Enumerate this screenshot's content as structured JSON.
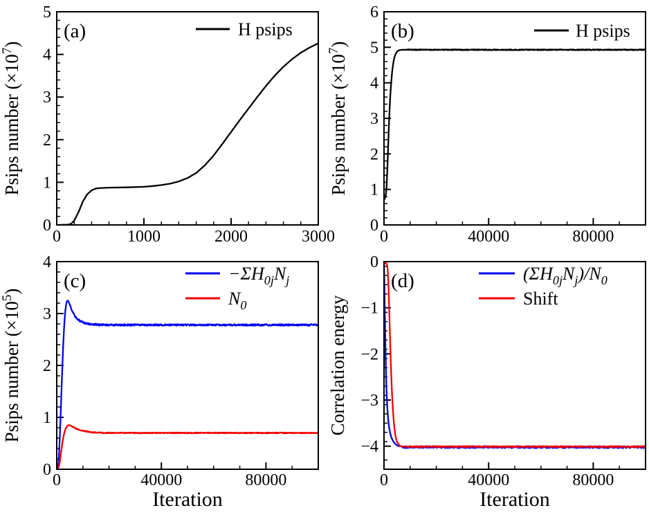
{
  "figure": {
    "background": "#ffffff",
    "panel_labels": [
      "(a)",
      "(b)",
      "(c)",
      "(d)"
    ]
  },
  "colors": {
    "axis": "#000000",
    "black_series": "#000000",
    "blue_series": "#0000f0",
    "red_series": "#f50000"
  },
  "chart_data": [
    {
      "id": "a",
      "type": "line",
      "panel_label": "(a)",
      "title": "",
      "xlabel": "",
      "ylabel": "Psips number (×10^{7})",
      "xlim": [
        0,
        3000
      ],
      "ylim": [
        0,
        5
      ],
      "xticks": [
        0,
        1000,
        2000,
        3000
      ],
      "xticklabels": [
        "0",
        "1000",
        "2000",
        "3000"
      ],
      "yticks": [
        0,
        1,
        2,
        3,
        4,
        5
      ],
      "yticklabels": [
        "0",
        "1",
        "2",
        "3",
        "4",
        "5"
      ],
      "minor_x": 200,
      "minor_y": 0.2,
      "grid": false,
      "legend_position": "top-right",
      "legend": [
        {
          "label": "H psips",
          "color": "#000000",
          "italic": false
        }
      ],
      "series": [
        {
          "name": "H psips",
          "color": "#000000",
          "noise": 0,
          "noise_from": 0,
          "points": [
            [
              0,
              0
            ],
            [
              120,
              0.005
            ],
            [
              160,
              0.02
            ],
            [
              200,
              0.1
            ],
            [
              250,
              0.3
            ],
            [
              300,
              0.55
            ],
            [
              350,
              0.72
            ],
            [
              400,
              0.81
            ],
            [
              450,
              0.855
            ],
            [
              500,
              0.865
            ],
            [
              600,
              0.875
            ],
            [
              700,
              0.878
            ],
            [
              800,
              0.882
            ],
            [
              900,
              0.888
            ],
            [
              1000,
              0.895
            ],
            [
              1100,
              0.912
            ],
            [
              1200,
              0.935
            ],
            [
              1300,
              0.968
            ],
            [
              1400,
              1.02
            ],
            [
              1500,
              1.1
            ],
            [
              1600,
              1.22
            ],
            [
              1700,
              1.4
            ],
            [
              1800,
              1.63
            ],
            [
              1900,
              1.9
            ],
            [
              2000,
              2.18
            ],
            [
              2100,
              2.46
            ],
            [
              2200,
              2.73
            ],
            [
              2300,
              3.0
            ],
            [
              2400,
              3.26
            ],
            [
              2500,
              3.5
            ],
            [
              2600,
              3.71
            ],
            [
              2700,
              3.89
            ],
            [
              2800,
              4.04
            ],
            [
              2900,
              4.16
            ],
            [
              3000,
              4.26
            ]
          ]
        }
      ]
    },
    {
      "id": "b",
      "type": "line",
      "panel_label": "(b)",
      "title": "",
      "xlabel": "",
      "ylabel": "Psips number (×10^{7})",
      "xlim": [
        0,
        100000
      ],
      "ylim": [
        0,
        6
      ],
      "xticks": [
        0,
        40000,
        80000
      ],
      "xticklabels": [
        "0",
        "40000",
        "80000"
      ],
      "yticks": [
        0,
        1,
        2,
        3,
        4,
        5,
        6
      ],
      "yticklabels": [
        "0",
        "1",
        "2",
        "3",
        "4",
        "5",
        "6"
      ],
      "minor_x": 10000,
      "minor_y": 0.2,
      "grid": false,
      "legend_position": "top-right",
      "legend": [
        {
          "label": "H psips",
          "color": "#000000",
          "italic": false
        }
      ],
      "series": [
        {
          "name": "H psips",
          "color": "#000000",
          "noise": 0.012,
          "noise_from": 9000,
          "points": [
            [
              0,
              0.7
            ],
            [
              150,
              0.72
            ],
            [
              300,
              0.74
            ],
            [
              500,
              0.78
            ],
            [
              700,
              0.85
            ],
            [
              900,
              1.0
            ],
            [
              1100,
              1.25
            ],
            [
              1300,
              1.6
            ],
            [
              1500,
              2.0
            ],
            [
              1700,
              2.45
            ],
            [
              1900,
              2.85
            ],
            [
              2100,
              3.2
            ],
            [
              2300,
              3.5
            ],
            [
              2500,
              3.75
            ],
            [
              2800,
              4.05
            ],
            [
              3100,
              4.3
            ],
            [
              3400,
              4.48
            ],
            [
              3700,
              4.62
            ],
            [
              4000,
              4.72
            ],
            [
              4500,
              4.82
            ],
            [
              5000,
              4.88
            ],
            [
              5500,
              4.91
            ],
            [
              6000,
              4.92
            ],
            [
              7000,
              4.93
            ],
            [
              8000,
              4.93
            ],
            [
              10000,
              4.93
            ],
            [
              100000,
              4.93
            ]
          ]
        }
      ]
    },
    {
      "id": "c",
      "type": "line",
      "panel_label": "(c)",
      "title": "",
      "xlabel": "Iteration",
      "ylabel": "Psips number (×10^{5})",
      "xlim": [
        0,
        100000
      ],
      "ylim": [
        0,
        4
      ],
      "xticks": [
        0,
        40000,
        80000
      ],
      "xticklabels": [
        "0",
        "40000",
        "80000"
      ],
      "yticks": [
        0,
        1,
        2,
        3,
        4
      ],
      "yticklabels": [
        "0",
        "1",
        "2",
        "3",
        "4"
      ],
      "minor_x": 10000,
      "minor_y": 0.2,
      "grid": false,
      "legend_position": "top-right",
      "legend": [
        {
          "label": "−ΣH_{0j}N_{j}",
          "color": "#0000f0",
          "italic": true
        },
        {
          "label": "N_{0}",
          "color": "#f50000",
          "italic": true
        }
      ],
      "series": [
        {
          "name": "−ΣH_{0j}N_{j}",
          "color": "#0000f0",
          "noise": 0.016,
          "noise_from": 5000,
          "points": [
            [
              0,
              0
            ],
            [
              300,
              0.01
            ],
            [
              600,
              0.08
            ],
            [
              900,
              0.3
            ],
            [
              1200,
              0.65
            ],
            [
              1500,
              1.05
            ],
            [
              1800,
              1.5
            ],
            [
              2100,
              1.9
            ],
            [
              2400,
              2.3
            ],
            [
              2700,
              2.63
            ],
            [
              3000,
              2.88
            ],
            [
              3300,
              3.06
            ],
            [
              3600,
              3.18
            ],
            [
              3900,
              3.24
            ],
            [
              4200,
              3.25
            ],
            [
              4600,
              3.22
            ],
            [
              5000,
              3.17
            ],
            [
              5500,
              3.1
            ],
            [
              6000,
              3.04
            ],
            [
              6600,
              2.98
            ],
            [
              7200,
              2.93
            ],
            [
              8000,
              2.89
            ],
            [
              9000,
              2.85
            ],
            [
              10000,
              2.83
            ],
            [
              11000,
              2.81
            ],
            [
              12500,
              2.8
            ],
            [
              14000,
              2.79
            ],
            [
              16000,
              2.785
            ],
            [
              20000,
              2.78
            ],
            [
              100000,
              2.78
            ]
          ]
        },
        {
          "name": "N_{0}",
          "color": "#f50000",
          "noise": 0.008,
          "noise_from": 5000,
          "points": [
            [
              0,
              0
            ],
            [
              400,
              0.005
            ],
            [
              800,
              0.05
            ],
            [
              1200,
              0.15
            ],
            [
              1600,
              0.3
            ],
            [
              2000,
              0.45
            ],
            [
              2400,
              0.58
            ],
            [
              2800,
              0.68
            ],
            [
              3200,
              0.75
            ],
            [
              3600,
              0.8
            ],
            [
              4000,
              0.83
            ],
            [
              4400,
              0.85
            ],
            [
              4800,
              0.85
            ],
            [
              5400,
              0.84
            ],
            [
              6000,
              0.82
            ],
            [
              6800,
              0.8
            ],
            [
              7600,
              0.78
            ],
            [
              8400,
              0.76
            ],
            [
              9200,
              0.75
            ],
            [
              10000,
              0.74
            ],
            [
              11000,
              0.73
            ],
            [
              12500,
              0.72
            ],
            [
              14000,
              0.71
            ],
            [
              16000,
              0.705
            ],
            [
              18000,
              0.7
            ],
            [
              100000,
              0.7
            ]
          ]
        }
      ]
    },
    {
      "id": "d",
      "type": "line",
      "panel_label": "(d)",
      "title": "",
      "xlabel": "Iteration",
      "ylabel": "Correlation energy",
      "xlim": [
        0,
        100000
      ],
      "ylim": [
        -4.5,
        0
      ],
      "xticks": [
        0,
        40000,
        80000
      ],
      "xticklabels": [
        "0",
        "40000",
        "80000"
      ],
      "yticks": [
        0,
        -1,
        -2,
        -3,
        -4
      ],
      "yticklabels": [
        "0",
        "−1",
        "−2",
        "−3",
        "−4"
      ],
      "minor_x": 10000,
      "minor_y": 0.2,
      "grid": false,
      "legend_position": "top-right",
      "legend": [
        {
          "label": "(ΣH_{0j}N_{j})/N_{0}",
          "color": "#0000f0",
          "italic": true
        },
        {
          "label": "Shift",
          "color": "#f50000",
          "italic": false
        }
      ],
      "series": [
        {
          "name": "(ΣH_{0j}N_{j})/N_{0}",
          "color": "#0000f0",
          "noise": 0.022,
          "noise_from": 7000,
          "points": [
            [
              0,
              0
            ],
            [
              150,
              -0.5
            ],
            [
              300,
              -1.05
            ],
            [
              450,
              -1.55
            ],
            [
              600,
              -2.0
            ],
            [
              750,
              -2.4
            ],
            [
              900,
              -2.7
            ],
            [
              1100,
              -3.0
            ],
            [
              1300,
              -3.2
            ],
            [
              1600,
              -3.42
            ],
            [
              1900,
              -3.57
            ],
            [
              2300,
              -3.7
            ],
            [
              2700,
              -3.79
            ],
            [
              3200,
              -3.86
            ],
            [
              3800,
              -3.92
            ],
            [
              4500,
              -3.96
            ],
            [
              5200,
              -3.99
            ],
            [
              6000,
              -4.0
            ],
            [
              7000,
              -4.01
            ],
            [
              8000,
              -4.02
            ],
            [
              100000,
              -4.02
            ]
          ]
        },
        {
          "name": "Shift",
          "color": "#f50000",
          "noise": 0.012,
          "noise_from": 9000,
          "points": [
            [
              0,
              -0.02
            ],
            [
              1000,
              -0.04
            ],
            [
              1300,
              -0.1
            ],
            [
              1500,
              -0.25
            ],
            [
              1700,
              -0.5
            ],
            [
              1900,
              -0.85
            ],
            [
              2100,
              -1.25
            ],
            [
              2300,
              -1.65
            ],
            [
              2500,
              -2.0
            ],
            [
              2700,
              -2.35
            ],
            [
              2900,
              -2.65
            ],
            [
              3100,
              -2.9
            ],
            [
              3400,
              -3.2
            ],
            [
              3700,
              -3.45
            ],
            [
              4000,
              -3.62
            ],
            [
              4400,
              -3.78
            ],
            [
              4800,
              -3.88
            ],
            [
              5300,
              -3.94
            ],
            [
              6000,
              -3.99
            ],
            [
              7000,
              -4.01
            ],
            [
              8000,
              -4.01
            ],
            [
              100000,
              -4.01
            ]
          ]
        }
      ]
    }
  ]
}
